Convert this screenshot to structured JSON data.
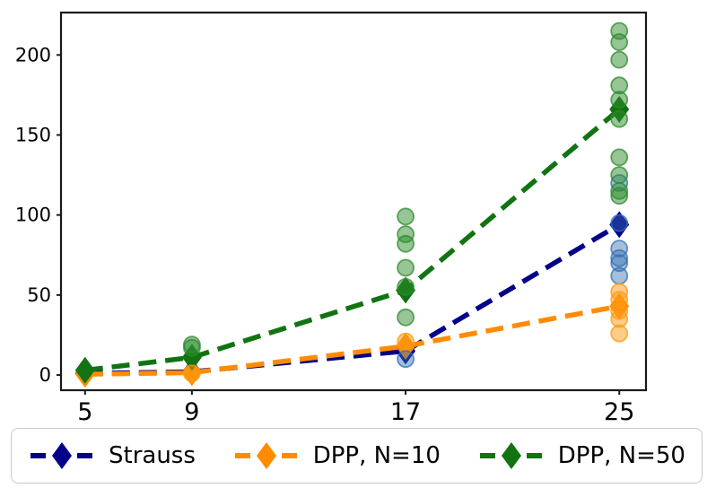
{
  "chart_data": {
    "type": "line",
    "title": "",
    "xlabel": "",
    "ylabel": "",
    "grid": false,
    "legend_position": "bottom",
    "xlim": [
      4.1,
      26.0
    ],
    "ylim": [
      -9.5,
      226.5
    ],
    "x_ticks": [
      5,
      9,
      17,
      25
    ],
    "y_ticks": [
      0,
      50,
      100,
      150,
      200
    ],
    "axis_color": "#1a1a1a",
    "line_style": "dashed",
    "marker": "diamond",
    "series": [
      {
        "name": "Strauss",
        "color": "#00008B",
        "x": [
          5,
          9,
          17,
          25
        ],
        "y": [
          1,
          2,
          15,
          94
        ],
        "scatter_color": "#3670B2",
        "scatter_opacity": 0.45,
        "scatter": [
          [
            17,
            10
          ],
          [
            25,
            120
          ],
          [
            25,
            95
          ],
          [
            25,
            79
          ],
          [
            25,
            73
          ],
          [
            25,
            70
          ],
          [
            25,
            62
          ]
        ]
      },
      {
        "name": "DPP, N=10",
        "color": "#FF8C00",
        "x": [
          5,
          9,
          17,
          25
        ],
        "y": [
          0.5,
          1.5,
          18,
          43
        ],
        "scatter_color": "#FF9913",
        "scatter_opacity": 0.5,
        "scatter": [
          [
            9,
            1
          ],
          [
            17,
            21
          ],
          [
            25,
            52
          ],
          [
            25,
            47
          ],
          [
            25,
            40
          ],
          [
            25,
            35
          ],
          [
            25,
            26
          ]
        ]
      },
      {
        "name": "DPP, N=50",
        "color": "#117311",
        "x": [
          5,
          9,
          17,
          25
        ],
        "y": [
          3,
          11,
          53,
          166
        ],
        "scatter_color": "#2E8B2E",
        "scatter_opacity": 0.5,
        "scatter": [
          [
            9,
            19
          ],
          [
            9,
            17
          ],
          [
            17,
            99
          ],
          [
            17,
            88
          ],
          [
            17,
            82
          ],
          [
            17,
            67
          ],
          [
            17,
            55
          ],
          [
            17,
            36
          ],
          [
            25,
            215
          ],
          [
            25,
            208
          ],
          [
            25,
            197
          ],
          [
            25,
            181
          ],
          [
            25,
            172
          ],
          [
            25,
            160
          ],
          [
            25,
            136
          ],
          [
            25,
            125
          ],
          [
            25,
            115
          ],
          [
            25,
            112
          ]
        ]
      }
    ]
  },
  "legend": {
    "items": [
      {
        "label": "Strauss",
        "color": "#00008B"
      },
      {
        "label": "DPP, N=10",
        "color": "#FF8C00"
      },
      {
        "label": "DPP, N=50",
        "color": "#117311"
      }
    ]
  }
}
